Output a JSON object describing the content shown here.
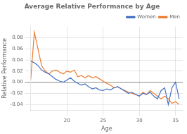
{
  "chart_data": {
    "type": "line",
    "title": "Average Relative Performance by Age",
    "xlabel": "Age",
    "ylabel": "Relative Performance",
    "x": [
      15,
      15.5,
      16,
      16.5,
      17,
      17.5,
      18,
      18.5,
      19,
      19.5,
      20,
      20.5,
      21,
      21.5,
      22,
      22.5,
      23,
      23.5,
      24,
      24.5,
      25,
      25.5,
      26,
      26.5,
      27,
      27.5,
      28,
      28.5,
      29,
      29.5,
      30,
      30.5,
      31,
      31.5,
      32,
      32.5,
      33,
      33.5,
      34,
      34.5,
      35,
      35.5
    ],
    "series": [
      {
        "name": "Women",
        "color": "#4472C4",
        "values": [
          0.038,
          0.035,
          0.03,
          0.022,
          0.018,
          0.015,
          0.01,
          0.005,
          0.002,
          0.0,
          0.004,
          0.008,
          0.002,
          -0.002,
          -0.005,
          -0.003,
          -0.008,
          -0.012,
          -0.01,
          -0.014,
          -0.015,
          -0.012,
          -0.014,
          -0.01,
          -0.008,
          -0.012,
          -0.016,
          -0.02,
          -0.018,
          -0.022,
          -0.025,
          -0.02,
          -0.022,
          -0.018,
          -0.025,
          -0.03,
          -0.015,
          -0.01,
          -0.04,
          -0.01,
          0.0,
          -0.03
        ]
      },
      {
        "name": "Men",
        "color": "#ED7D31",
        "values": [
          0.005,
          0.09,
          0.06,
          0.03,
          0.02,
          0.015,
          0.02,
          0.022,
          0.018,
          0.015,
          0.02,
          0.018,
          0.022,
          0.01,
          0.012,
          0.008,
          0.012,
          0.008,
          0.01,
          0.006,
          0.002,
          -0.002,
          -0.005,
          -0.01,
          -0.008,
          -0.012,
          -0.015,
          -0.018,
          -0.02,
          -0.022,
          -0.025,
          -0.018,
          -0.022,
          -0.015,
          -0.02,
          -0.025,
          -0.03,
          -0.025,
          -0.03,
          -0.038,
          -0.035,
          -0.04
        ]
      }
    ],
    "xlim": [
      15,
      36
    ],
    "xticks": [
      20,
      25,
      30,
      35
    ],
    "ylim": [
      -0.05,
      0.1
    ],
    "yticks": [
      -0.04,
      -0.02,
      {
        "value": 0.0,
        "label": "0.00"
      },
      0.02,
      0.04,
      0.06,
      0.08
    ],
    "grid": true,
    "legend": "upper right"
  }
}
